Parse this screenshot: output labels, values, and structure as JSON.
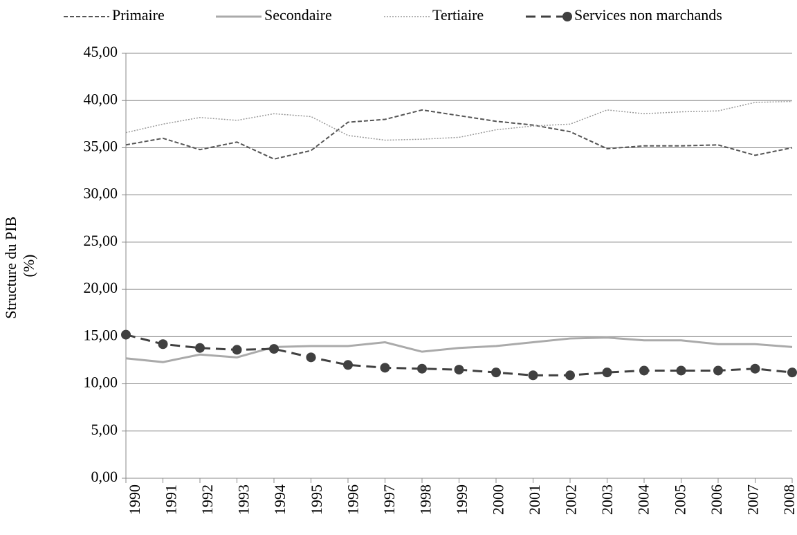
{
  "chart_data": {
    "type": "line",
    "ylabel": [
      "Structure du PIB",
      "(%)"
    ],
    "categories": [
      "1990",
      "1991",
      "1992",
      "1993",
      "1994",
      "1995",
      "1996",
      "1997",
      "1998",
      "1999",
      "2000",
      "2001",
      "2002",
      "2003",
      "2004",
      "2005",
      "2006",
      "2007",
      "2008"
    ],
    "series": [
      {
        "name": "Primaire",
        "color": "#555555",
        "dash": "6,3",
        "width": 2,
        "values": [
          35.3,
          36.0,
          34.8,
          35.6,
          33.8,
          34.7,
          37.7,
          38.0,
          39.0,
          38.4,
          37.8,
          37.4,
          36.7,
          34.9,
          35.2,
          35.2,
          35.3,
          34.2,
          35.0
        ]
      },
      {
        "name": "Secondaire",
        "color": "#aaaaaa",
        "dash": "none",
        "width": 3,
        "values": [
          12.7,
          12.3,
          13.1,
          12.8,
          13.9,
          14.0,
          14.0,
          14.4,
          13.4,
          13.8,
          14.0,
          14.4,
          14.8,
          14.9,
          14.6,
          14.6,
          14.2,
          14.2,
          13.9
        ]
      },
      {
        "name": "Tertiaire",
        "color": "#999999",
        "dash": "2,2",
        "width": 1.5,
        "values": [
          36.6,
          37.5,
          38.2,
          37.9,
          38.6,
          38.3,
          36.3,
          35.8,
          35.9,
          36.1,
          36.9,
          37.3,
          37.5,
          39.0,
          38.6,
          38.8,
          38.9,
          39.8,
          39.9
        ]
      },
      {
        "name": "Services non marchands",
        "color": "#404040",
        "dash": "14,8",
        "width": 3,
        "marker": "circle",
        "values": [
          15.2,
          14.2,
          13.8,
          13.6,
          13.7,
          12.8,
          12.0,
          11.7,
          11.6,
          11.5,
          11.2,
          10.9,
          10.9,
          11.2,
          11.4,
          11.4,
          11.4,
          11.6,
          11.2
        ]
      }
    ],
    "ylim": [
      0,
      45
    ],
    "yticks": [
      {
        "value": 0,
        "label": "0,00"
      },
      {
        "value": 5,
        "label": "5,00"
      },
      {
        "value": 10,
        "label": "10,00"
      },
      {
        "value": 15,
        "label": "15,00"
      },
      {
        "value": 20,
        "label": "20,00"
      },
      {
        "value": 25,
        "label": "25,00"
      },
      {
        "value": 30,
        "label": "30,00"
      },
      {
        "value": 35,
        "label": "35,00"
      },
      {
        "value": 40,
        "label": "40,00"
      },
      {
        "value": 45,
        "label": "45,00"
      }
    ],
    "grid": true,
    "legend": "top"
  }
}
